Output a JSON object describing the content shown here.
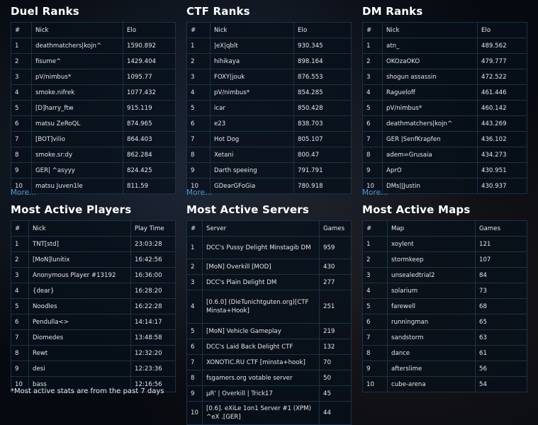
{
  "duel": {
    "title": "Duel Ranks",
    "cols": [
      "#",
      "Nick",
      "Elo"
    ],
    "rows": [
      {
        "n": "1",
        "nick": "deathmatchers|kojn^",
        "elo": "1590.892"
      },
      {
        "n": "2",
        "nick": "fisume^",
        "elo": "1429.404"
      },
      {
        "n": "3",
        "nick": "pV/nimbus*",
        "elo": "1095.77"
      },
      {
        "n": "4",
        "nick": "smoke.nifrek",
        "elo": "1077.432"
      },
      {
        "n": "5",
        "nick": "[D]harry_ftw",
        "elo": "915.119"
      },
      {
        "n": "6",
        "nick": "matsu ZeRoQL",
        "elo": "874.965"
      },
      {
        "n": "7",
        "nick": "[BOT]vilio",
        "elo": "864.403"
      },
      {
        "n": "8",
        "nick": "smoke.sr:dy",
        "elo": "862.284"
      },
      {
        "n": "9",
        "nick": "GER| ^asyyy",
        "elo": "824.425"
      },
      {
        "n": "10",
        "nick": "matsu Juven1le",
        "elo": "811.59"
      }
    ],
    "more": "More..."
  },
  "ctf": {
    "title": "CTF Ranks",
    "cols": [
      "#",
      "Nick",
      "Elo"
    ],
    "rows": [
      {
        "n": "1",
        "nick": "|eX|qblt",
        "elo": "930.345"
      },
      {
        "n": "2",
        "nick": "hihikaya",
        "elo": "898.164"
      },
      {
        "n": "3",
        "nick": "FOXY|jouk",
        "elo": "876.553"
      },
      {
        "n": "4",
        "nick": "pV/nimbus*",
        "elo": "854.285"
      },
      {
        "n": "5",
        "nick": "icar",
        "elo": "850.428"
      },
      {
        "n": "6",
        "nick": "e23",
        "elo": "838.703"
      },
      {
        "n": "7",
        "nick": "Hot Dog",
        "elo": "805.107"
      },
      {
        "n": "8",
        "nick": "Xetani",
        "elo": "800.47"
      },
      {
        "n": "9",
        "nick": "Darth speeing",
        "elo": "791.791"
      },
      {
        "n": "10",
        "nick": "GDearGFoGia",
        "elo": "780.918"
      }
    ],
    "more": "More..."
  },
  "dm": {
    "title": "DM Ranks",
    "cols": [
      "#",
      "Nick",
      "Elo"
    ],
    "rows": [
      {
        "n": "1",
        "nick": "atn_",
        "elo": "489.562"
      },
      {
        "n": "2",
        "nick": "OKOzaOKO",
        "elo": "479.777"
      },
      {
        "n": "3",
        "nick": "shogun assassin",
        "elo": "472.522"
      },
      {
        "n": "4",
        "nick": "Ragueloff",
        "elo": "461.446"
      },
      {
        "n": "5",
        "nick": "pV/nimbus*",
        "elo": "460.142"
      },
      {
        "n": "6",
        "nick": "deathmatchers|kojn^",
        "elo": "443.269"
      },
      {
        "n": "7",
        "nick": "GER |SenfKrapfen",
        "elo": "436.102"
      },
      {
        "n": "8",
        "nick": "adem=Grusaia",
        "elo": "434.273"
      },
      {
        "n": "9",
        "nick": "AprO",
        "elo": "430.951"
      },
      {
        "n": "10",
        "nick": "DMs||Justin",
        "elo": "430.937"
      }
    ],
    "more": "More..."
  },
  "players": {
    "title": "Most Active Players",
    "cols": [
      "#",
      "Nick",
      "Play Time"
    ],
    "rows": [
      {
        "n": "1",
        "nick": "TNT[std]",
        "time": "23:03:28"
      },
      {
        "n": "2",
        "nick": "[MoN]lunitix",
        "time": "16:42:56"
      },
      {
        "n": "3",
        "nick": "Anonymous Player #13192",
        "time": "16:36:00"
      },
      {
        "n": "4",
        "nick": "{dear}",
        "time": "16:28:20"
      },
      {
        "n": "5",
        "nick": "Noodles",
        "time": "16:22:28"
      },
      {
        "n": "6",
        "nick": "Pendulla<>",
        "time": "14:14:17"
      },
      {
        "n": "7",
        "nick": "Diomedes",
        "time": "13:48:58"
      },
      {
        "n": "8",
        "nick": "Rewt",
        "time": "12:32:20"
      },
      {
        "n": "9",
        "nick": "desi",
        "time": "12:23:36"
      },
      {
        "n": "10",
        "nick": "bass",
        "time": "12:16:56"
      }
    ],
    "footnote": "*Most active stats are from the past 7 days"
  },
  "servers": {
    "title": "Most Active Servers",
    "cols": [
      "#",
      "Server",
      "Games"
    ],
    "rows": [
      {
        "n": "1",
        "name": "DCC's Pussy Delight Minstagib DM",
        "games": "959"
      },
      {
        "n": "2",
        "name": "[MoN] Overkill [MOD]",
        "games": "430"
      },
      {
        "n": "3",
        "name": "DCC's Plain Delight DM",
        "games": "277"
      },
      {
        "n": "4",
        "name": "[0.6.0] (DieTunichtguten.org)[CTF Minsta+Hook]",
        "games": "251"
      },
      {
        "n": "5",
        "name": "[MoN] Vehicle Gameplay",
        "games": "219"
      },
      {
        "n": "6",
        "name": "DCC's Laid Back Delight CTF",
        "games": "132"
      },
      {
        "n": "7",
        "name": "XONOTIC.RU CTF [minsta+hook]",
        "games": "70"
      },
      {
        "n": "8",
        "name": "fsgamers.org votable server",
        "games": "50"
      },
      {
        "n": "9",
        "name": "µR' | Overkill | Trick17",
        "games": "45"
      },
      {
        "n": "10",
        "name": "[0.6]. eXiLe 1on1 Server #1 (XPM) ^eX .[GER]",
        "games": "44"
      }
    ]
  },
  "maps": {
    "title": "Most Active Maps",
    "cols": [
      "#",
      "Map",
      "Games"
    ],
    "rows": [
      {
        "n": "1",
        "map": "xoylent",
        "games": "121"
      },
      {
        "n": "2",
        "map": "stormkeep",
        "games": "107"
      },
      {
        "n": "3",
        "map": "unsealedtrial2",
        "games": "84"
      },
      {
        "n": "4",
        "map": "solarium",
        "games": "73"
      },
      {
        "n": "5",
        "map": "farewell",
        "games": "68"
      },
      {
        "n": "6",
        "map": "runningman",
        "games": "65"
      },
      {
        "n": "7",
        "map": "sandstorm",
        "games": "63"
      },
      {
        "n": "8",
        "map": "dance",
        "games": "61"
      },
      {
        "n": "9",
        "map": "afterslime",
        "games": "56"
      },
      {
        "n": "10",
        "map": "cube-arena",
        "games": "54"
      }
    ]
  },
  "colors": {
    "link": "#4b9ad6",
    "border": "#1a3348",
    "background": "#06090f"
  }
}
